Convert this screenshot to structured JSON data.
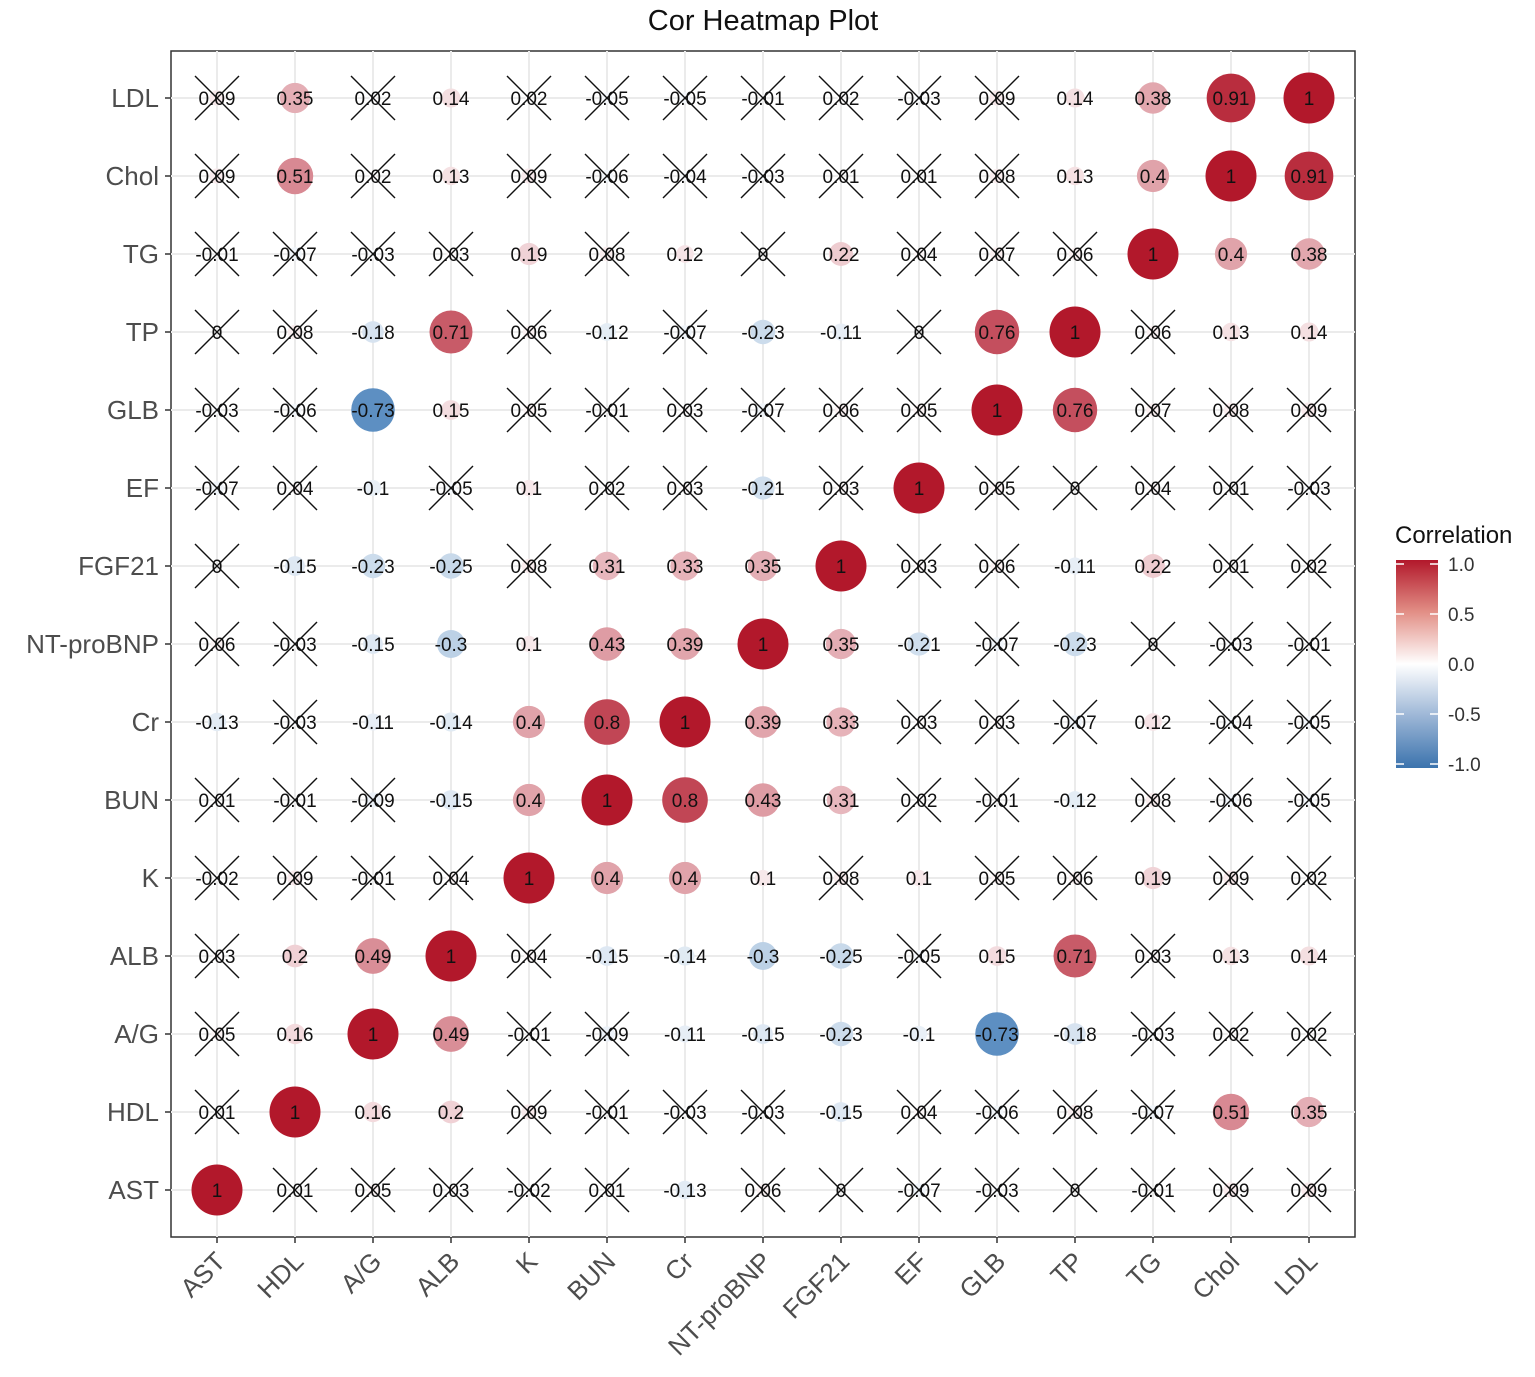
{
  "chart_data": {
    "type": "heatmap",
    "title": "Cor Heatmap Plot",
    "xlabel": "",
    "ylabel": "",
    "x_categories": [
      "AST",
      "HDL",
      "A/G",
      "ALB",
      "K",
      "BUN",
      "Cr",
      "NT-proBNP",
      "FGF21",
      "EF",
      "GLB",
      "TP",
      "TG",
      "Chol",
      "LDL"
    ],
    "y_categories_top_to_bottom": [
      "LDL",
      "Chol",
      "TG",
      "TP",
      "GLB",
      "EF",
      "FGF21",
      "NT-proBNP",
      "Cr",
      "BUN",
      "K",
      "ALB",
      "A/G",
      "HDL",
      "AST"
    ],
    "matrix_top_to_bottom": [
      [
        0.09,
        0.35,
        0.02,
        0.14,
        0.02,
        -0.05,
        -0.05,
        -0.01,
        0.02,
        -0.03,
        0.09,
        0.14,
        0.38,
        0.91,
        1
      ],
      [
        0.09,
        0.51,
        0.02,
        0.13,
        0.09,
        -0.06,
        -0.04,
        -0.03,
        0.01,
        0.01,
        0.08,
        0.13,
        0.4,
        1,
        0.91
      ],
      [
        -0.01,
        -0.07,
        -0.03,
        0.03,
        0.19,
        0.08,
        0.12,
        0,
        0.22,
        0.04,
        0.07,
        0.06,
        1,
        0.4,
        0.38
      ],
      [
        0,
        0.08,
        -0.18,
        0.71,
        0.06,
        -0.12,
        -0.07,
        -0.23,
        -0.11,
        0,
        0.76,
        1,
        0.06,
        0.13,
        0.14
      ],
      [
        -0.03,
        -0.06,
        -0.73,
        0.15,
        0.05,
        -0.01,
        0.03,
        -0.07,
        0.06,
        0.05,
        1,
        0.76,
        0.07,
        0.08,
        0.09
      ],
      [
        -0.07,
        0.04,
        -0.1,
        -0.05,
        0.1,
        0.02,
        0.03,
        -0.21,
        0.03,
        1,
        0.05,
        0,
        0.04,
        0.01,
        -0.03
      ],
      [
        0,
        -0.15,
        -0.23,
        -0.25,
        0.08,
        0.31,
        0.33,
        0.35,
        1,
        0.03,
        0.06,
        -0.11,
        0.22,
        0.01,
        0.02
      ],
      [
        0.06,
        -0.03,
        -0.15,
        -0.3,
        0.1,
        0.43,
        0.39,
        1,
        0.35,
        -0.21,
        -0.07,
        -0.23,
        0,
        -0.03,
        -0.01
      ],
      [
        -0.13,
        -0.03,
        -0.11,
        -0.14,
        0.4,
        0.8,
        1,
        0.39,
        0.33,
        0.03,
        0.03,
        -0.07,
        0.12,
        -0.04,
        -0.05
      ],
      [
        0.01,
        -0.01,
        -0.09,
        -0.15,
        0.4,
        1,
        0.8,
        0.43,
        0.31,
        0.02,
        -0.01,
        -0.12,
        0.08,
        -0.06,
        -0.05
      ],
      [
        -0.02,
        0.09,
        -0.01,
        0.04,
        1,
        0.4,
        0.4,
        0.1,
        0.08,
        0.1,
        0.05,
        0.06,
        0.19,
        0.09,
        0.02
      ],
      [
        0.03,
        0.2,
        0.49,
        1,
        0.04,
        -0.15,
        -0.14,
        -0.3,
        -0.25,
        -0.05,
        0.15,
        0.71,
        0.03,
        0.13,
        0.14
      ],
      [
        0.05,
        0.16,
        1,
        0.49,
        -0.01,
        -0.09,
        -0.11,
        -0.15,
        -0.23,
        -0.1,
        -0.73,
        -0.18,
        -0.03,
        0.02,
        0.02
      ],
      [
        0.01,
        1,
        0.16,
        0.2,
        0.09,
        -0.01,
        -0.03,
        -0.03,
        -0.15,
        0.04,
        -0.06,
        0.08,
        -0.07,
        0.51,
        0.35
      ],
      [
        1,
        0.01,
        0.05,
        0.03,
        -0.02,
        0.01,
        -0.13,
        0.06,
        0,
        -0.07,
        -0.03,
        0,
        -0.01,
        0.09,
        0.09
      ]
    ],
    "insignificant_top_to_bottom": [
      [
        1,
        0,
        1,
        0,
        1,
        1,
        1,
        1,
        1,
        1,
        1,
        0,
        0,
        0,
        0
      ],
      [
        1,
        0,
        1,
        0,
        1,
        1,
        1,
        1,
        1,
        1,
        1,
        0,
        0,
        0,
        0
      ],
      [
        1,
        1,
        1,
        1,
        0,
        1,
        0,
        1,
        0,
        1,
        1,
        1,
        0,
        0,
        0
      ],
      [
        1,
        1,
        0,
        0,
        1,
        0,
        1,
        0,
        0,
        1,
        0,
        0,
        1,
        0,
        0
      ],
      [
        1,
        1,
        0,
        0,
        1,
        1,
        1,
        1,
        1,
        1,
        0,
        0,
        1,
        1,
        1
      ],
      [
        1,
        1,
        0,
        1,
        0,
        1,
        1,
        0,
        1,
        0,
        1,
        1,
        1,
        1,
        1
      ],
      [
        1,
        0,
        0,
        0,
        1,
        0,
        0,
        0,
        0,
        1,
        1,
        0,
        0,
        1,
        1
      ],
      [
        1,
        1,
        0,
        0,
        0,
        0,
        0,
        0,
        0,
        0,
        1,
        0,
        1,
        1,
        1
      ],
      [
        0,
        1,
        0,
        0,
        0,
        0,
        0,
        0,
        0,
        1,
        1,
        1,
        0,
        1,
        1
      ],
      [
        1,
        1,
        1,
        0,
        0,
        0,
        0,
        0,
        0,
        1,
        1,
        0,
        1,
        1,
        1
      ],
      [
        1,
        1,
        1,
        1,
        0,
        0,
        0,
        0,
        1,
        0,
        1,
        1,
        0,
        1,
        1
      ],
      [
        1,
        0,
        0,
        0,
        1,
        0,
        0,
        0,
        0,
        1,
        0,
        0,
        1,
        0,
        0
      ],
      [
        1,
        0,
        0,
        0,
        1,
        1,
        0,
        0,
        0,
        0,
        0,
        0,
        1,
        1,
        1
      ],
      [
        1,
        0,
        0,
        0,
        1,
        1,
        1,
        1,
        0,
        1,
        1,
        1,
        1,
        0,
        0
      ],
      [
        0,
        1,
        1,
        1,
        1,
        1,
        0,
        1,
        1,
        1,
        1,
        1,
        1,
        1,
        1
      ]
    ],
    "legend": {
      "title": "Correlation",
      "ticks": [
        "1.0",
        "0.5",
        "0.0",
        "-0.5",
        "-1.0"
      ],
      "placement": "right",
      "colors": {
        "high": "#b2182b",
        "mid": "#ffffff",
        "low": "#2166ac"
      }
    },
    "value_range": [
      -1,
      1
    ],
    "grid": true
  }
}
